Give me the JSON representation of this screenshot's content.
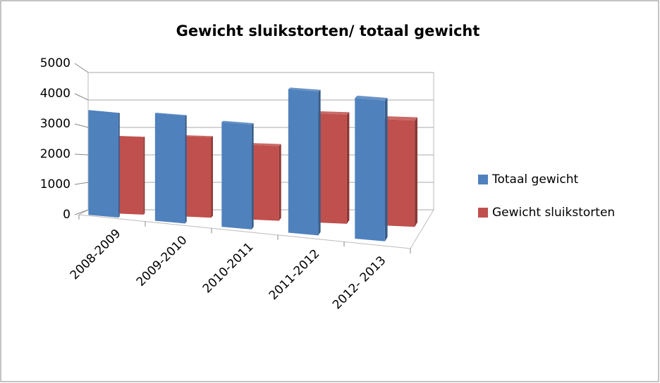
{
  "chart_data": {
    "type": "bar3d",
    "title": "Gewicht sluikstorten/ totaal gewicht",
    "categories": [
      "2008-2009",
      "2009-2010",
      "2010-2011",
      "2011-2012",
      "2012- 2013"
    ],
    "series": [
      {
        "name": "Totaal gewicht",
        "color": "#4f81bd",
        "values": [
          3500,
          3600,
          3500,
          4800,
          4700
        ]
      },
      {
        "name": "Gewicht sluikstorten",
        "color": "#c0504d",
        "values": [
          2700,
          2800,
          2600,
          3800,
          3700
        ]
      }
    ],
    "ylim": [
      0,
      5000
    ],
    "yticks": [
      0,
      1000,
      2000,
      3000,
      4000,
      5000
    ],
    "grid": true,
    "legend": "right"
  }
}
